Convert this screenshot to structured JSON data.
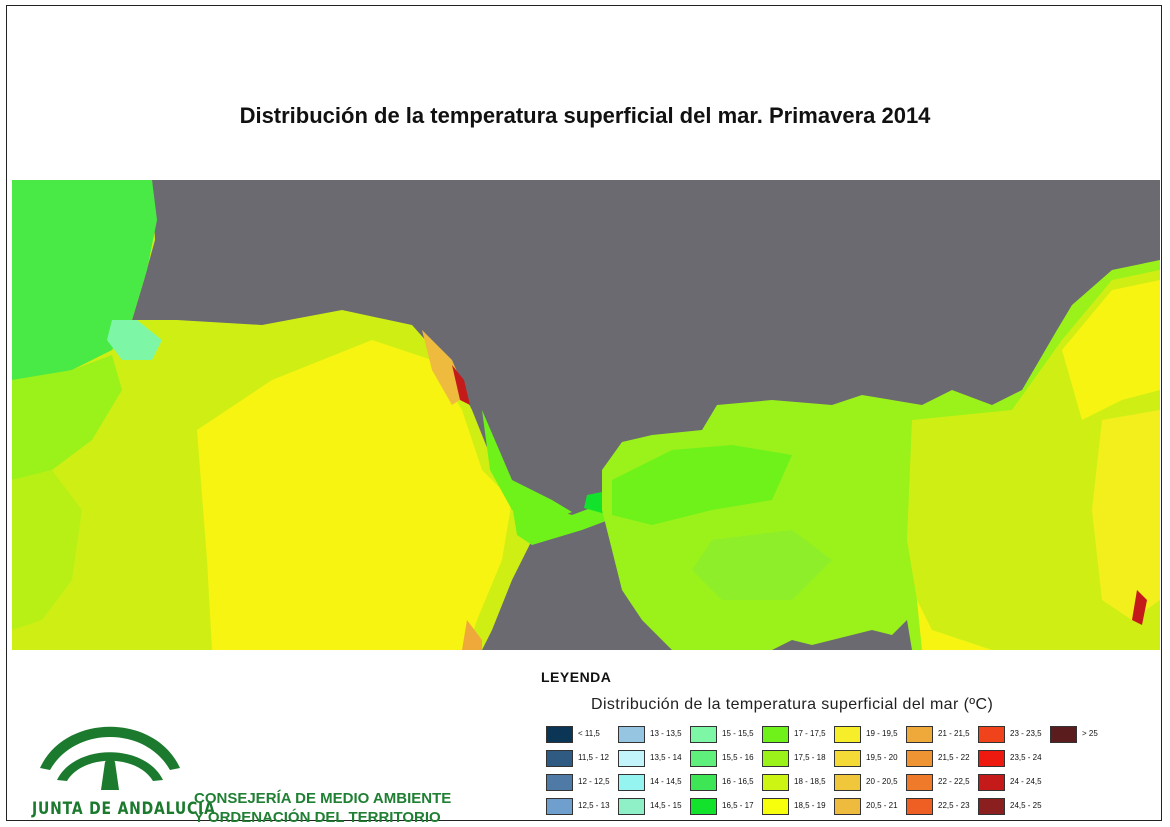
{
  "title": "Distribución de la temperatura superficial del mar. Primavera 2014",
  "legend": {
    "heading": "LEYENDA",
    "subtitle": "Distribución de la temperatura superficial del mar",
    "unit": "(ºC)",
    "classes": [
      {
        "label": "< 11,5",
        "color": "#0b3555"
      },
      {
        "label": "11,5 - 12",
        "color": "#2f5b82"
      },
      {
        "label": "12 - 12,5",
        "color": "#4f7aa6"
      },
      {
        "label": "12,5 - 13",
        "color": "#6e9fcd"
      },
      {
        "label": "13 - 13,5",
        "color": "#95c5e0"
      },
      {
        "label": "13,5 - 14",
        "color": "#c4f4fb"
      },
      {
        "label": "14 - 14,5",
        "color": "#95f3f0"
      },
      {
        "label": "14,5 - 15",
        "color": "#8ff0c8"
      },
      {
        "label": "15 - 15,5",
        "color": "#7df7a6"
      },
      {
        "label": "15,5 - 16",
        "color": "#5ff07c"
      },
      {
        "label": "16 - 16,5",
        "color": "#3ee656"
      },
      {
        "label": "16,5 - 17",
        "color": "#13e22c"
      },
      {
        "label": "17 - 17,5",
        "color": "#6ef21a"
      },
      {
        "label": "17,5 - 18",
        "color": "#9af21a"
      },
      {
        "label": "18 - 18,5",
        "color": "#ccf514"
      },
      {
        "label": "18,5 - 19",
        "color": "#f8ff0c"
      },
      {
        "label": "19 - 19,5",
        "color": "#f5ee28"
      },
      {
        "label": "19,5 - 20",
        "color": "#f3da37"
      },
      {
        "label": "20 - 20,5",
        "color": "#f0c63b"
      },
      {
        "label": "20,5 - 21",
        "color": "#efbb3f"
      },
      {
        "label": "21 - 21,5",
        "color": "#efa93a"
      },
      {
        "label": "21,5 - 22",
        "color": "#ee9433"
      },
      {
        "label": "22 - 22,5",
        "color": "#ee7a2a"
      },
      {
        "label": "22,5 - 23",
        "color": "#ef5e22"
      },
      {
        "label": "23 - 23,5",
        "color": "#f0431b"
      },
      {
        "label": "23,5 - 24",
        "color": "#ee1a10"
      },
      {
        "label": "24 - 24,5",
        "color": "#c41a1a"
      },
      {
        "label": "24,5 - 25",
        "color": "#8b1f1f"
      },
      {
        "label": "> 25",
        "color": "#5a1c1c"
      }
    ]
  },
  "colors": {
    "land": "#6a6a70"
  },
  "logo": {
    "text": "JUNTA DE ANDALUCIA",
    "icon": "junta-andalucia-logo-icon"
  },
  "organization": {
    "line1": "CONSEJERÍA DE MEDIO AMBIENTE",
    "line2": "Y ORDENACIÓN DEL TERRITORIO"
  }
}
